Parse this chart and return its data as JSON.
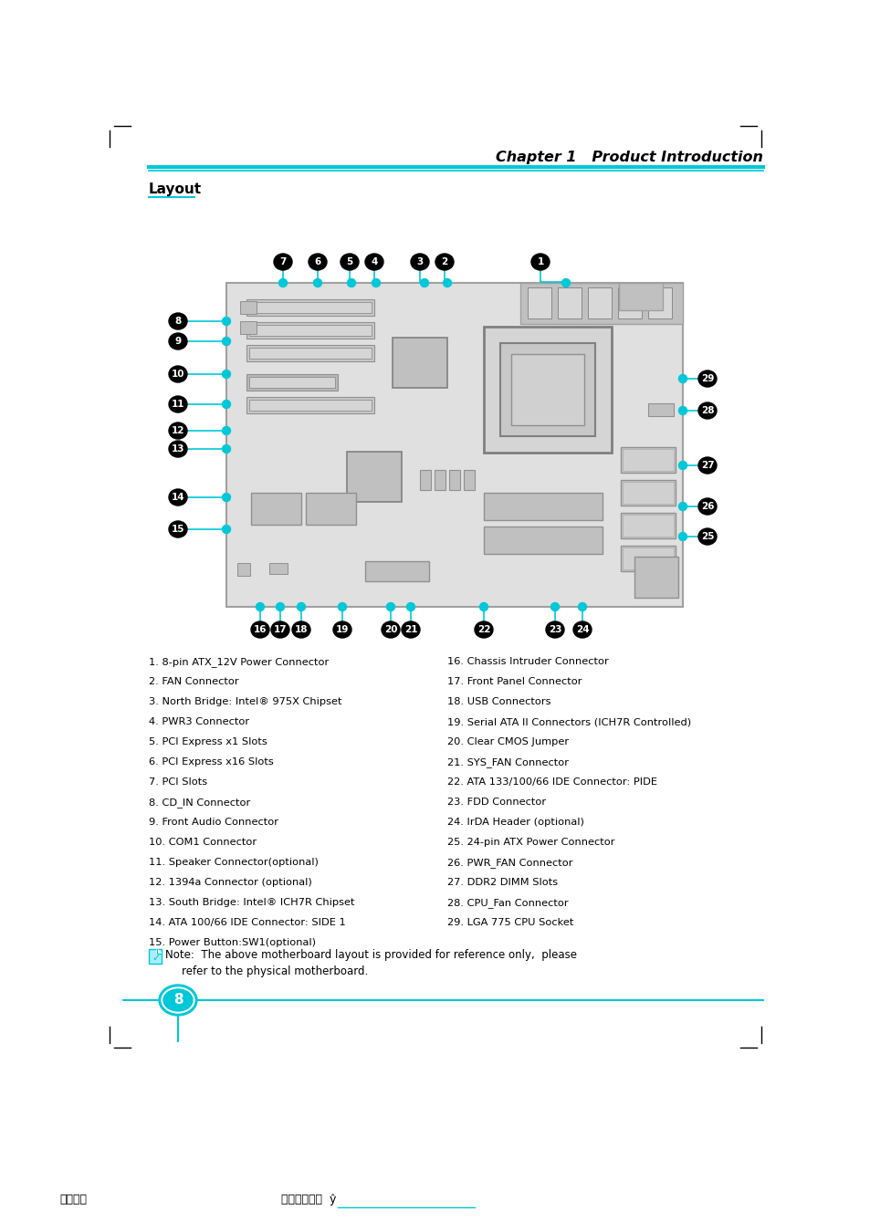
{
  "title": "Chapter 1   Product Introduction",
  "section": "Layout",
  "bg_color": "#ffffff",
  "cyan_color": "#00c8d8",
  "items_left": [
    "1. 8-pin ATX_12V Power Connector",
    "2. FAN Connector",
    "3. North Bridge: Intel® 975X Chipset",
    "4. PWR3 Connector",
    "5. PCI Express x1 Slots",
    "6. PCI Express x16 Slots",
    "7. PCI Slots",
    "8. CD_IN Connector",
    "9. Front Audio Connector",
    "10. COM1 Connector",
    "11. Speaker Connector(optional)",
    "12. 1394a Connector (optional)",
    "13. South Bridge: Intel® ICH7R Chipset",
    "14. ATA 100/66 IDE Connector: SIDE 1",
    "15. Power Button:SW1(optional)"
  ],
  "items_right": [
    "16. Chassis Intruder Connector",
    "17. Front Panel Connector",
    "18. USB Connectors",
    "19. Serial ATA II Connectors (ICH7R Controlled)",
    "20. Clear CMOS Jumper",
    "21. SYS_FAN Connector",
    "22. ATA 133/100/66 IDE Connector: PIDE",
    "23. FDD Connector",
    "24. IrDA Header (optional)",
    "25. 24-pin ATX Power Connector",
    "26. PWR_FAN Connector",
    "27. DDR2 DIMM Slots",
    "28. CPU_Fan Connector",
    "29. LGA 775 CPU Socket"
  ],
  "note_line1": "Note:  The above motherboard layout is provided for reference only,  please",
  "note_line2": "refer to the physical motherboard.",
  "page_number": "8",
  "footer_left": "文件使用",
  "footer_right": "试用版本创建  ŷ"
}
